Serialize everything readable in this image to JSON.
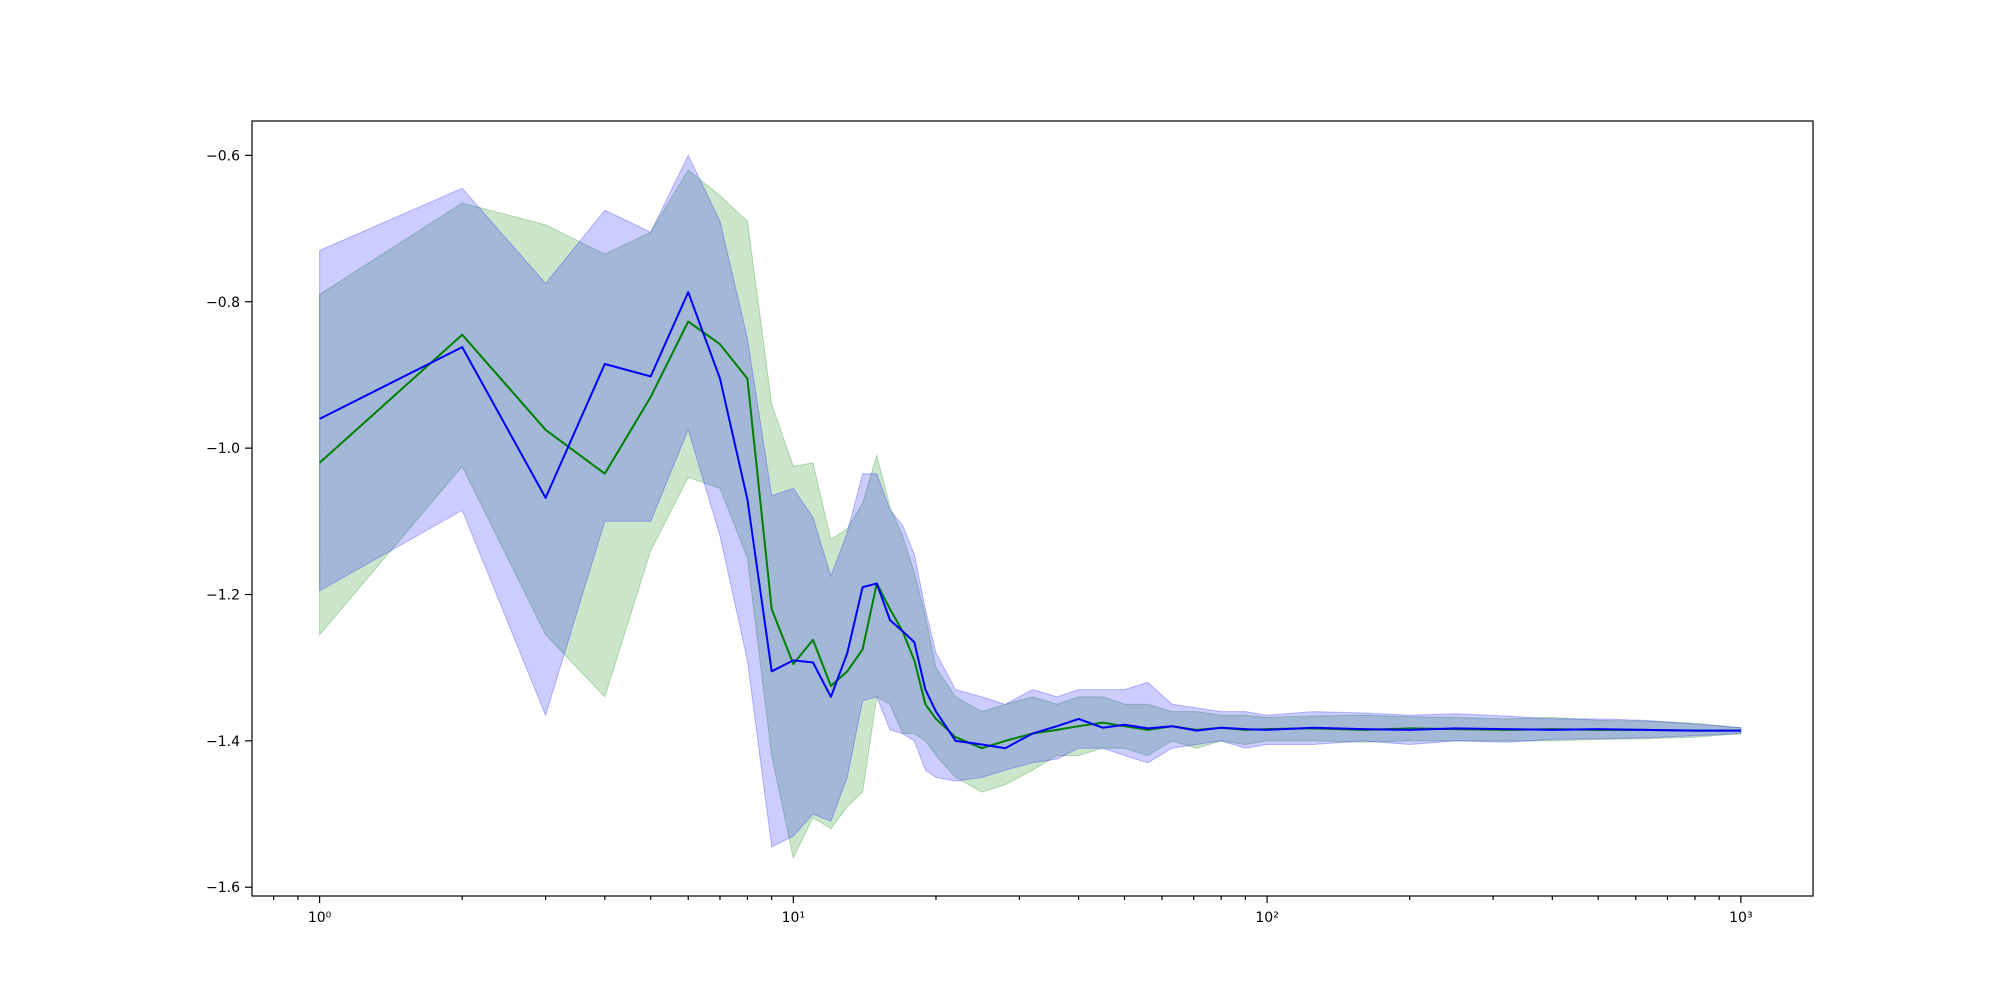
{
  "chart_data": {
    "type": "line",
    "title": "",
    "xlabel": "",
    "ylabel": "",
    "xscale": "log",
    "xlim": [
      0.72,
      1420
    ],
    "ylim": [
      -1.612,
      -0.553
    ],
    "x_ticks": [
      1,
      10,
      100,
      1000
    ],
    "x_tick_labels": [
      "10⁰",
      "10¹",
      "10²",
      "10³"
    ],
    "y_ticks": [
      -1.6,
      -1.4,
      -1.2,
      -1.0,
      -0.8,
      -0.6
    ],
    "y_tick_labels": [
      "−1.6",
      "−1.4",
      "−1.2",
      "−1.0",
      "−0.8",
      "−0.6"
    ],
    "grid": false,
    "legend": "none",
    "series": [
      {
        "color": "#008000",
        "band_color": "#008000",
        "band_opacity": 0.2,
        "x": [
          1,
          2,
          3,
          4,
          5,
          6,
          7,
          8,
          9,
          10,
          11,
          12,
          13,
          14,
          15,
          16,
          17,
          18,
          19,
          20,
          22,
          25,
          28,
          32,
          36,
          40,
          45,
          50,
          56,
          63,
          71,
          80,
          90,
          100,
          125,
          160,
          200,
          250,
          320,
          400,
          500,
          630,
          800,
          1000
        ],
        "y": [
          -1.02,
          -0.845,
          -0.975,
          -1.035,
          -0.93,
          -0.827,
          -0.858,
          -0.905,
          -1.22,
          -1.295,
          -1.262,
          -1.325,
          -1.305,
          -1.275,
          -1.185,
          -1.22,
          -1.25,
          -1.29,
          -1.35,
          -1.37,
          -1.395,
          -1.41,
          -1.4,
          -1.39,
          -1.385,
          -1.38,
          -1.375,
          -1.38,
          -1.385,
          -1.38,
          -1.385,
          -1.382,
          -1.385,
          -1.384,
          -1.383,
          -1.385,
          -1.383,
          -1.384,
          -1.385,
          -1.384,
          -1.385,
          -1.385,
          -1.386,
          -1.386
        ],
        "lower": [
          -1.255,
          -1.025,
          -1.255,
          -1.34,
          -1.14,
          -1.04,
          -1.055,
          -1.15,
          -1.42,
          -1.56,
          -1.505,
          -1.52,
          -1.49,
          -1.47,
          -1.34,
          -1.35,
          -1.39,
          -1.39,
          -1.4,
          -1.42,
          -1.45,
          -1.47,
          -1.46,
          -1.44,
          -1.42,
          -1.42,
          -1.41,
          -1.41,
          -1.42,
          -1.4,
          -1.41,
          -1.4,
          -1.405,
          -1.4,
          -1.4,
          -1.402,
          -1.4,
          -1.4,
          -1.4,
          -1.4,
          -1.398,
          -1.397,
          -1.395,
          -1.39
        ],
        "upper": [
          -0.79,
          -0.665,
          -0.695,
          -0.735,
          -0.705,
          -0.62,
          -0.655,
          -0.69,
          -0.94,
          -1.025,
          -1.02,
          -1.125,
          -1.11,
          -1.075,
          -1.01,
          -1.08,
          -1.12,
          -1.17,
          -1.23,
          -1.3,
          -1.34,
          -1.36,
          -1.35,
          -1.34,
          -1.35,
          -1.34,
          -1.34,
          -1.35,
          -1.35,
          -1.36,
          -1.36,
          -1.365,
          -1.365,
          -1.368,
          -1.366,
          -1.365,
          -1.367,
          -1.368,
          -1.37,
          -1.368,
          -1.372,
          -1.373,
          -1.376,
          -1.382
        ]
      },
      {
        "color": "#0000ff",
        "band_color": "#0000ff",
        "band_opacity": 0.2,
        "x": [
          1,
          2,
          3,
          4,
          5,
          6,
          7,
          8,
          9,
          10,
          11,
          12,
          13,
          14,
          15,
          16,
          17,
          18,
          19,
          20,
          22,
          25,
          28,
          32,
          36,
          40,
          45,
          50,
          56,
          63,
          71,
          80,
          90,
          100,
          125,
          160,
          200,
          250,
          320,
          400,
          500,
          630,
          800,
          1000
        ],
        "y": [
          -0.96,
          -0.862,
          -1.068,
          -0.885,
          -0.902,
          -0.787,
          -0.905,
          -1.07,
          -1.305,
          -1.29,
          -1.293,
          -1.34,
          -1.28,
          -1.19,
          -1.185,
          -1.235,
          -1.25,
          -1.265,
          -1.33,
          -1.36,
          -1.4,
          -1.405,
          -1.41,
          -1.39,
          -1.38,
          -1.37,
          -1.382,
          -1.378,
          -1.383,
          -1.38,
          -1.386,
          -1.382,
          -1.384,
          -1.385,
          -1.382,
          -1.384,
          -1.385,
          -1.383,
          -1.384,
          -1.385,
          -1.384,
          -1.385,
          -1.386,
          -1.386
        ],
        "lower": [
          -1.195,
          -1.085,
          -1.365,
          -1.1,
          -1.1,
          -0.975,
          -1.12,
          -1.29,
          -1.545,
          -1.53,
          -1.5,
          -1.51,
          -1.45,
          -1.345,
          -1.34,
          -1.385,
          -1.39,
          -1.4,
          -1.44,
          -1.45,
          -1.455,
          -1.45,
          -1.44,
          -1.43,
          -1.425,
          -1.41,
          -1.41,
          -1.42,
          -1.43,
          -1.41,
          -1.405,
          -1.4,
          -1.41,
          -1.405,
          -1.405,
          -1.4,
          -1.405,
          -1.4,
          -1.402,
          -1.398,
          -1.397,
          -1.396,
          -1.393,
          -1.39
        ],
        "upper": [
          -0.73,
          -0.645,
          -0.775,
          -0.675,
          -0.705,
          -0.6,
          -0.69,
          -0.85,
          -1.065,
          -1.055,
          -1.095,
          -1.175,
          -1.115,
          -1.035,
          -1.035,
          -1.085,
          -1.105,
          -1.145,
          -1.22,
          -1.28,
          -1.33,
          -1.34,
          -1.35,
          -1.33,
          -1.34,
          -1.33,
          -1.33,
          -1.33,
          -1.32,
          -1.35,
          -1.355,
          -1.36,
          -1.36,
          -1.365,
          -1.36,
          -1.362,
          -1.365,
          -1.363,
          -1.366,
          -1.37,
          -1.37,
          -1.372,
          -1.377,
          -1.382
        ]
      }
    ]
  }
}
